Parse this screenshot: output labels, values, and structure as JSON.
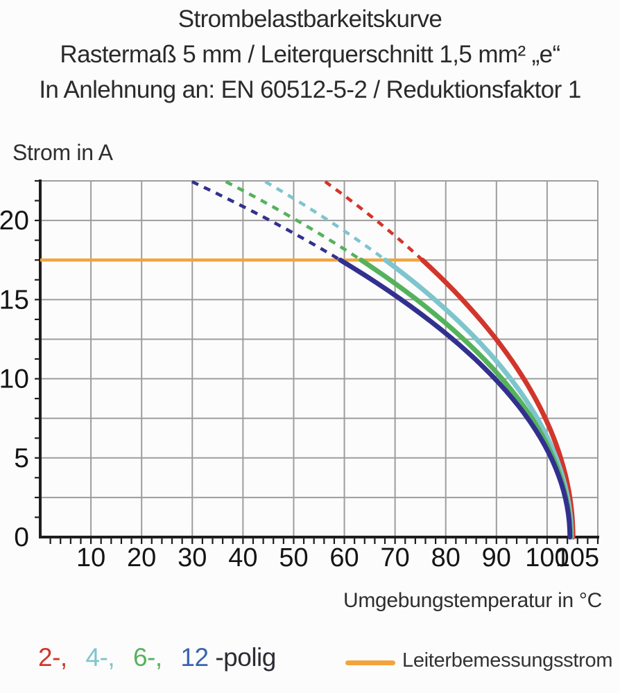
{
  "header": {
    "line1": "Strombelastbarkeitskurve",
    "line2": "Rastermaß 5 mm / Leiterquerschnitt 1,5 mm² „e“",
    "line3": "In Anlehnung an: EN 60512-5-2 / Reduktionsfaktor 1"
  },
  "chart_data": {
    "type": "line",
    "title": "Strombelastbarkeitskurve",
    "ylabel": "Strom in A",
    "xlabel": "Umgebungstemperatur in °C",
    "xlim": [
      0,
      110
    ],
    "ylim": [
      0,
      22.5
    ],
    "x_ticks_labeled": [
      10,
      20,
      30,
      40,
      50,
      60,
      70,
      80,
      90,
      100,
      105
    ],
    "y_ticks_labeled": [
      0,
      5,
      10,
      15,
      20
    ],
    "x_grid_step_c": 10,
    "y_grid_step_a": 2.5,
    "x_minor_tick_step_c": 2,
    "y_minor_tick_step_a": 1.25,
    "grid": true,
    "colors": {
      "grid": "#9d9d9d",
      "axis": "#1d1d1d",
      "tick_label": "#141414"
    },
    "rated_current_line": {
      "label": "Leiterbemessungsstrom",
      "current_a": 17.5,
      "from_c": 0,
      "to_c": 75.6,
      "color": "#f2a43b"
    },
    "curve_model": "I(T) = 17.5·sqrt((zero_at_c − T)/(zero_at_c − solid_from_c)); dashed above 17.5 A, solid below",
    "series": [
      {
        "name": "2-polig",
        "poles": 2,
        "color": "#d2352b",
        "rated_current_a": 17.5,
        "solid_from_c": 75.4,
        "zero_at_c": 105.1,
        "dashed_top_c": 56.0,
        "points_c_a": [
          [
            56.0,
            22.5
          ],
          [
            66.3,
            20.0
          ],
          [
            75.4,
            17.5
          ],
          [
            83.3,
            15.0
          ],
          [
            90.0,
            12.5
          ],
          [
            95.4,
            10.0
          ],
          [
            99.6,
            7.5
          ],
          [
            102.7,
            5.0
          ],
          [
            104.5,
            2.5
          ],
          [
            105.1,
            0
          ]
        ]
      },
      {
        "name": "4-polig",
        "poles": 4,
        "color": "#7ec5cd",
        "rated_current_a": 17.5,
        "solid_from_c": 68.1,
        "zero_at_c": 104.8,
        "dashed_top_c": 44.1,
        "points_c_a": [
          [
            44.1,
            22.5
          ],
          [
            56.9,
            20.0
          ],
          [
            68.1,
            17.5
          ],
          [
            77.8,
            15.0
          ],
          [
            86.1,
            12.5
          ],
          [
            92.8,
            10.0
          ],
          [
            98.1,
            7.5
          ],
          [
            101.8,
            5.0
          ],
          [
            104.1,
            2.5
          ],
          [
            104.8,
            0
          ]
        ]
      },
      {
        "name": "6-polig",
        "poles": 6,
        "color": "#55b25c",
        "rated_current_a": 17.5,
        "solid_from_c": 63.3,
        "zero_at_c": 104.6,
        "dashed_top_c": 36.3,
        "points_c_a": [
          [
            36.3,
            22.5
          ],
          [
            50.7,
            20.0
          ],
          [
            63.3,
            17.5
          ],
          [
            74.3,
            15.0
          ],
          [
            83.5,
            12.5
          ],
          [
            91.1,
            10.0
          ],
          [
            97.0,
            7.5
          ],
          [
            101.2,
            5.0
          ],
          [
            103.8,
            2.5
          ],
          [
            104.6,
            0
          ]
        ]
      },
      {
        "name": "12-polig",
        "poles": 12,
        "color": "#32308f",
        "rated_current_a": 17.5,
        "solid_from_c": 59.2,
        "zero_at_c": 104.5,
        "dashed_top_c": 29.6,
        "points_c_a": [
          [
            29.6,
            22.5
          ],
          [
            45.3,
            20.0
          ],
          [
            59.2,
            17.5
          ],
          [
            71.2,
            15.0
          ],
          [
            81.4,
            12.5
          ],
          [
            89.7,
            10.0
          ],
          [
            96.2,
            7.5
          ],
          [
            100.8,
            5.0
          ],
          [
            103.6,
            2.5
          ],
          [
            104.5,
            0
          ]
        ]
      }
    ]
  },
  "legend": {
    "items": [
      {
        "text": "2-,",
        "color": "#d2352b"
      },
      {
        "text": "4-,",
        "color": "#7ec5cd"
      },
      {
        "text": "6-,",
        "color": "#55b25c"
      },
      {
        "text": "12",
        "color": "#3a64ae"
      },
      {
        "text": "-polig",
        "color": "#2b2b33"
      }
    ],
    "rated": {
      "label": "Leiterbemessungsstrom",
      "color": "#f2a43b"
    }
  }
}
